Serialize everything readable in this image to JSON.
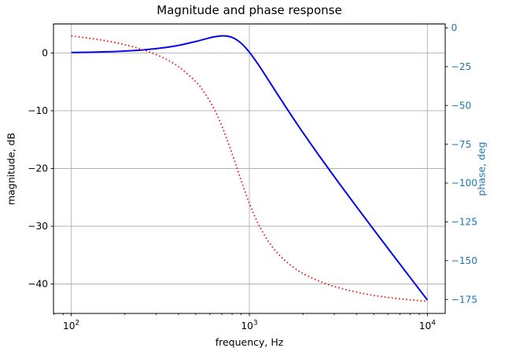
{
  "figure": {
    "background": "#ffffff"
  },
  "chart_data": {
    "type": "line",
    "title": "Magnitude and phase response",
    "xlabel": "frequency, Hz",
    "x_scale": "log",
    "xlim": [
      79.43,
      12589.25
    ],
    "grid": true,
    "grid_color": "#b0b0b0",
    "x": [
      100,
      126,
      158,
      200,
      251,
      316,
      398,
      501,
      562,
      631,
      708,
      794,
      891,
      1000,
      1122,
      1259,
      1413,
      1585,
      1778,
      1995,
      2512,
      3162,
      3981,
      5012,
      6310,
      7943,
      10000
    ],
    "series": [
      {
        "name": "magnitude",
        "ylabel": "magnitude, dB",
        "axis": "left",
        "color": "#0808ee",
        "linestyle": "solid",
        "linewidth": 2,
        "values": [
          0.08,
          0.13,
          0.21,
          0.34,
          0.53,
          0.84,
          1.31,
          2.0,
          2.4,
          2.78,
          2.97,
          2.74,
          1.8,
          0.15,
          -1.99,
          -4.35,
          -6.76,
          -9.13,
          -11.46,
          -13.73,
          -18.13,
          -22.38,
          -26.54,
          -30.65,
          -34.71,
          -38.75,
          -42.78
        ]
      },
      {
        "name": "phase",
        "ylabel": "phase, deg",
        "axis": "right",
        "color": "#ee1414",
        "linestyle": "dotted",
        "linewidth": 1.8,
        "values": [
          -5.2,
          -6.7,
          -8.4,
          -10.9,
          -14.0,
          -18.4,
          -24.8,
          -34.8,
          -42.1,
          -51.8,
          -64.5,
          -79.9,
          -97.0,
          -113.0,
          -126.2,
          -136.3,
          -144.1,
          -149.9,
          -154.5,
          -158.2,
          -163.6,
          -167.4,
          -170.2,
          -172.4,
          -174.0,
          -175.2,
          -176.2
        ]
      }
    ],
    "x_ticks": {
      "values": [
        100,
        1000,
        10000
      ],
      "labels": [
        {
          "base": "10",
          "exp": "2"
        },
        {
          "base": "10",
          "exp": "3"
        },
        {
          "base": "10",
          "exp": "4"
        }
      ]
    },
    "x_minor_ticks": [
      80,
      90,
      200,
      300,
      400,
      500,
      600,
      700,
      800,
      900,
      2000,
      3000,
      4000,
      5000,
      6000,
      7000,
      8000,
      9000
    ],
    "left_axis": {
      "label": "magnitude, dB",
      "color": "#000000",
      "tick_values": [
        0,
        -10,
        -20,
        -30,
        -40
      ],
      "ticks": [
        "0",
        "−10",
        "−20",
        "−30",
        "−40"
      ],
      "lim": [
        -45.1,
        5.03
      ]
    },
    "right_axis": {
      "label": "phase, deg",
      "color": "#1f77b4",
      "tick_values": [
        0,
        -25,
        -50,
        -75,
        -100,
        -125,
        -150,
        -175
      ],
      "ticks": [
        "0",
        "−25",
        "−50",
        "−75",
        "−100",
        "−125",
        "−150",
        "−175"
      ],
      "lim": [
        -184.0,
        2.5
      ]
    }
  }
}
